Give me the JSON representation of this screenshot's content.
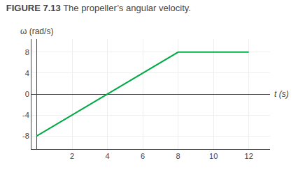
{
  "chart_data": {
    "type": "line",
    "title": "FIGURE 7.13",
    "subtitle": "The propeller’s angular velocity.",
    "xlabel": "t (s)",
    "ylabel": "ω (rad/s)",
    "x": [
      0,
      8,
      12
    ],
    "values": [
      -8,
      8,
      8
    ],
    "color": "#00aa44",
    "xlim": [
      -0.3,
      13.2
    ],
    "ylim": [
      -10.5,
      10.5
    ],
    "xticks": [
      2,
      4,
      6,
      8,
      10,
      12
    ],
    "yticks": [
      -8,
      -4,
      0,
      4,
      8
    ],
    "grid": true
  }
}
